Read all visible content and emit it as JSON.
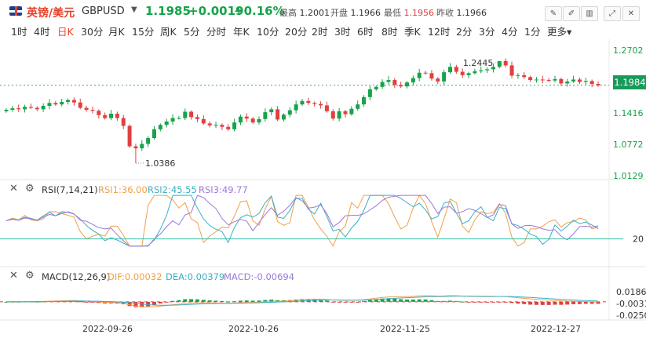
{
  "header": {
    "name": "英镑/美元",
    "code": "GBPUSD",
    "price": "1.1985",
    "change": "+0.0019",
    "change_pct": "+0.16%",
    "high_label": "最高",
    "high": "1.2001",
    "open_label": "开盘",
    "open": "1.1966",
    "low_label": "最低",
    "low": "1.1956",
    "prev_label": "昨收",
    "prev": "1.1966",
    "tools": [
      "draw-icon",
      "edit-icon",
      "layout-icon",
      "fullscreen-icon",
      "close-icon"
    ]
  },
  "tabs": [
    "1时",
    "4时",
    "日K",
    "30分",
    "月K",
    "15分",
    "周K",
    "5分",
    "分时",
    "年K",
    "10分",
    "20分",
    "2时",
    "3时",
    "6时",
    "8时",
    "季K",
    "12时",
    "2分",
    "3分",
    "4分",
    "1分",
    "更多"
  ],
  "active_tab": "日K",
  "main_chart": {
    "price_ticks": [
      "1.2702",
      "1.1416",
      "1.0772",
      "1.0129"
    ],
    "current_price": "1.1984",
    "max_label": "1.2445",
    "min_label": "1.0386"
  },
  "rsi": {
    "title": "RSI(7,14,21)",
    "rsi1": "RSI1:36.00",
    "rsi2": "RSI2:45.55",
    "rsi3": "RSI3:49.77",
    "level": "20"
  },
  "macd": {
    "title": "MACD(12,26,9)",
    "dif": "DIF:0.00032",
    "dea": "DEA:0.00379",
    "macd": "MACD:-0.00694",
    "ticks": [
      "0.01867",
      "-0.00317",
      "-0.02501"
    ]
  },
  "dates": [
    "2022-09-26",
    "2022-10-26",
    "2022-11-25",
    "2022-12-27"
  ],
  "colors": {
    "up": "#16a34a",
    "down": "#e04040",
    "rsi1": "#f0a04a",
    "rsi2": "#38b0c8",
    "rsi3": "#9b7ad8",
    "accent": "#e8402a"
  },
  "chart_data": {
    "type": "candlestick",
    "title": "英镑/美元 GBPUSD 日K",
    "yticks": [
      1.2702,
      1.1416,
      1.0772,
      1.0129
    ],
    "ylim": [
      1.0129,
      1.2702
    ],
    "current": 1.1984,
    "max": 1.2445,
    "min": 1.0386,
    "x_labels": [
      "2022-09-26",
      "2022-10-26",
      "2022-11-25",
      "2022-12-27"
    ],
    "closes": [
      1.148,
      1.151,
      1.149,
      1.154,
      1.152,
      1.149,
      1.156,
      1.162,
      1.159,
      1.164,
      1.168,
      1.163,
      1.152,
      1.148,
      1.146,
      1.137,
      1.131,
      1.14,
      1.131,
      1.115,
      1.073,
      1.069,
      1.078,
      1.09,
      1.108,
      1.117,
      1.124,
      1.131,
      1.131,
      1.144,
      1.133,
      1.129,
      1.12,
      1.116,
      1.117,
      1.113,
      1.108,
      1.122,
      1.134,
      1.13,
      1.122,
      1.129,
      1.143,
      1.149,
      1.128,
      1.138,
      1.147,
      1.159,
      1.166,
      1.162,
      1.16,
      1.157,
      1.145,
      1.13,
      1.145,
      1.139,
      1.15,
      1.159,
      1.174,
      1.19,
      1.195,
      1.205,
      1.209,
      1.199,
      1.196,
      1.204,
      1.213,
      1.224,
      1.223,
      1.212,
      1.206,
      1.225,
      1.236,
      1.226,
      1.219,
      1.223,
      1.227,
      1.229,
      1.231,
      1.236,
      1.248,
      1.239,
      1.218,
      1.219,
      1.215,
      1.209,
      1.21,
      1.209,
      1.208,
      1.211,
      1.202,
      1.206,
      1.21,
      1.205,
      1.207,
      1.201,
      1.198
    ],
    "rsi": {
      "levels": {
        "oversold": 20
      },
      "latest": {
        "rsi1": 36.0,
        "rsi2": 45.55,
        "rsi3": 49.77
      }
    },
    "macd": {
      "yticks": [
        0.01867,
        -0.00317,
        -0.02501
      ],
      "latest": {
        "dif": 0.00032,
        "dea": 0.00379,
        "macd": -0.00694
      }
    }
  }
}
